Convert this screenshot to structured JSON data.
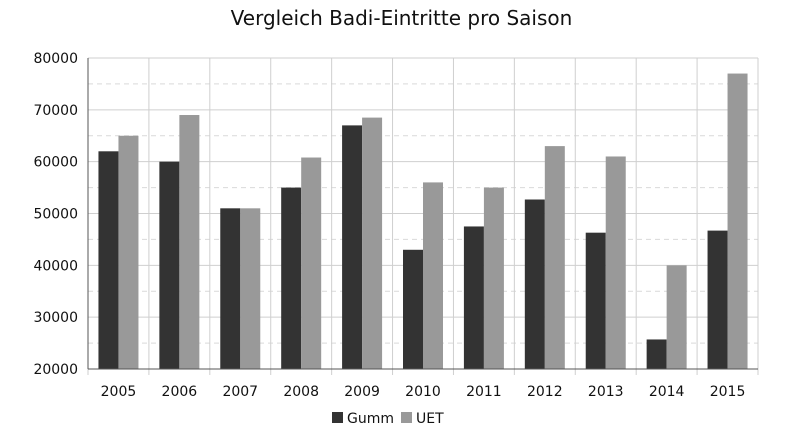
{
  "chart_data": {
    "type": "bar",
    "title": "Vergleich Badi-Eintritte pro Saison",
    "xlabel": "",
    "ylabel": "",
    "categories": [
      "2005",
      "2006",
      "2007",
      "2008",
      "2009",
      "2010",
      "2011",
      "2012",
      "2013",
      "2014",
      "2015"
    ],
    "series": [
      {
        "name": "Gumm",
        "color": "#333333",
        "values": [
          62000,
          60000,
          51000,
          55000,
          67000,
          43000,
          47500,
          52700,
          46300,
          25700,
          46700
        ]
      },
      {
        "name": "UET",
        "color": "#999999",
        "values": [
          65000,
          69000,
          51000,
          60800,
          68500,
          56000,
          55000,
          63000,
          61000,
          40000,
          77000
        ]
      }
    ],
    "ylim": [
      20000,
      80000
    ],
    "yticks": [
      "20000",
      "30000",
      "40000",
      "50000",
      "60000",
      "70000",
      "80000"
    ],
    "grid": true,
    "legend_position": "bottom"
  }
}
